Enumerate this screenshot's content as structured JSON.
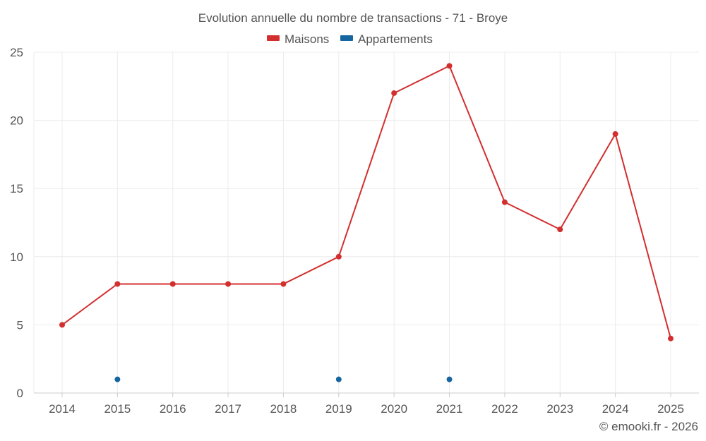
{
  "chart_data": {
    "type": "line",
    "title": "Evolution annuelle du nombre de transactions - 71 - Broye",
    "xlabel": "",
    "ylabel": "",
    "categories": [
      "2014",
      "2015",
      "2016",
      "2017",
      "2018",
      "2019",
      "2020",
      "2021",
      "2022",
      "2023",
      "2024",
      "2025"
    ],
    "ylim": [
      0,
      25
    ],
    "yticks": [
      0,
      5,
      10,
      15,
      20,
      25
    ],
    "grid": true,
    "legend_position": "top-center",
    "series": [
      {
        "name": "Maisons",
        "color": "#d32f2f",
        "line": true,
        "values": [
          5,
          8,
          8,
          8,
          8,
          10,
          22,
          24,
          14,
          12,
          19,
          4
        ]
      },
      {
        "name": "Appartements",
        "color": "#1565a0",
        "line": false,
        "values": [
          null,
          1,
          null,
          null,
          null,
          1,
          null,
          1,
          null,
          null,
          null,
          null
        ]
      }
    ]
  },
  "credit": "© emooki.fr - 2026"
}
